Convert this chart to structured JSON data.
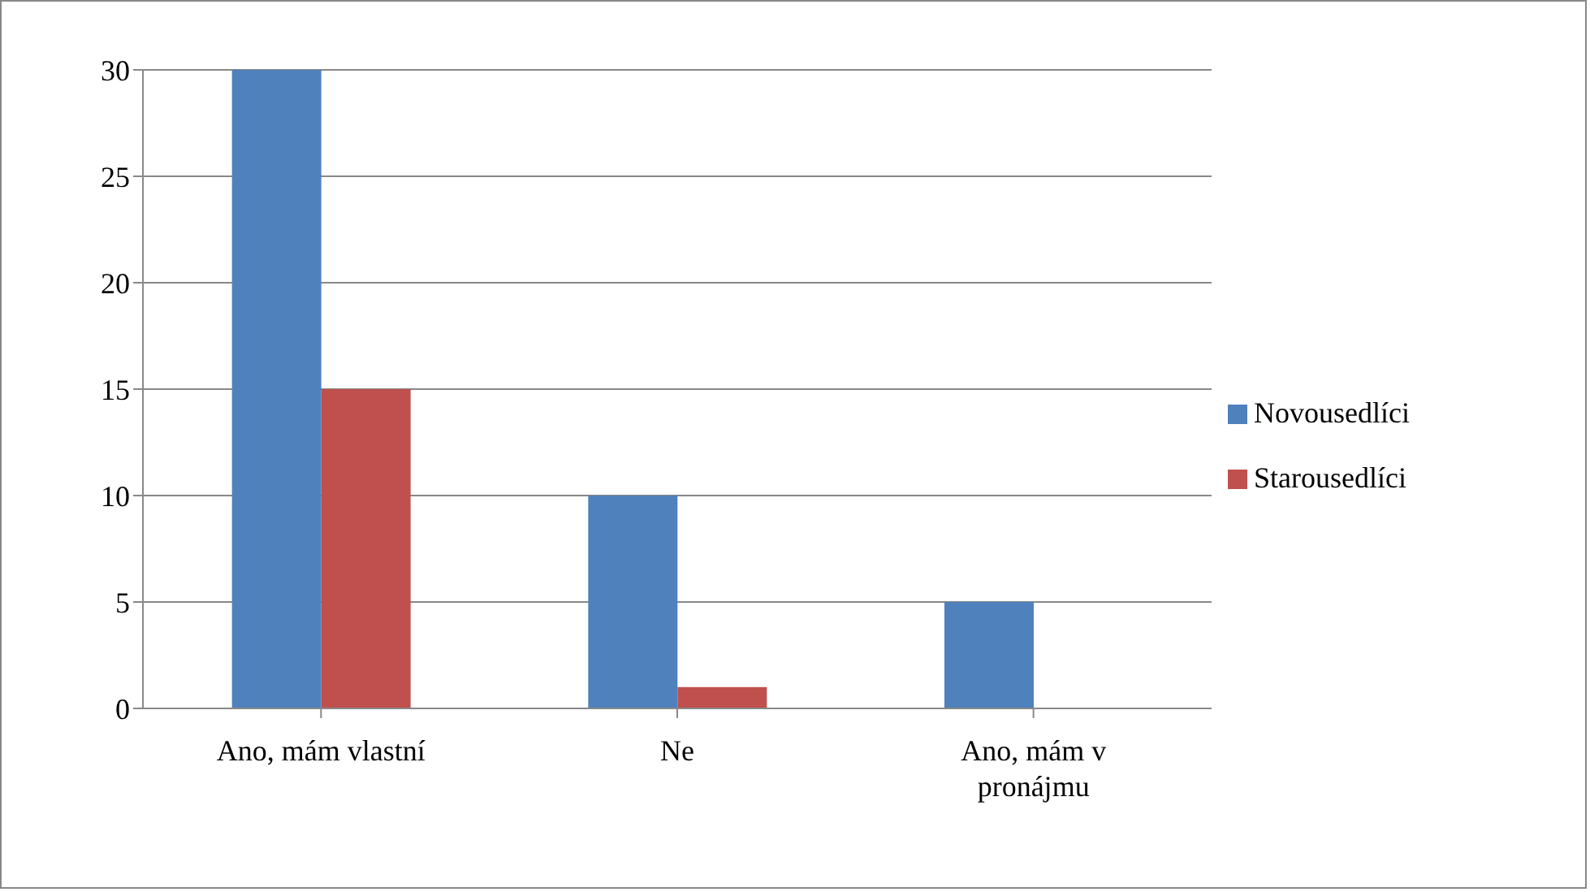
{
  "chart_data": {
    "type": "bar",
    "categories": [
      "Ano, mám vlastní",
      "Ne",
      "Ano, mám v pronájmu"
    ],
    "series": [
      {
        "name": "Novousedlíci",
        "color": "#4f81bd",
        "values": [
          30,
          10,
          5
        ]
      },
      {
        "name": "Starousedlíci",
        "color": "#c0504d",
        "values": [
          15,
          1,
          0
        ]
      }
    ],
    "ylim": [
      0,
      30
    ],
    "yticks": [
      0,
      5,
      10,
      15,
      20,
      25,
      30
    ],
    "grid": "y",
    "legend": "right"
  }
}
